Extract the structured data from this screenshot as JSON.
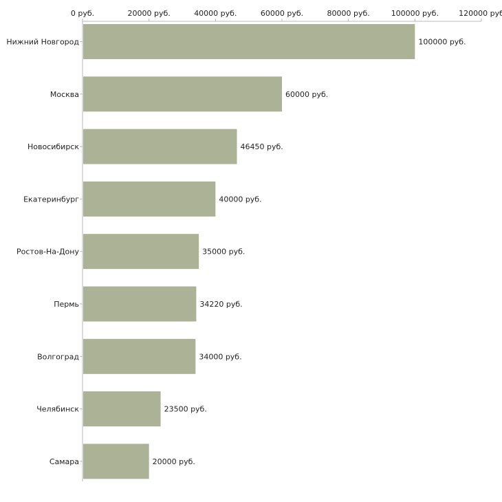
{
  "chart_data": {
    "type": "bar",
    "orientation": "horizontal",
    "title": "",
    "xlabel": "",
    "ylabel": "",
    "unit_suffix": " руб.",
    "xlim": [
      0,
      120000
    ],
    "x_ticks": [
      0,
      20000,
      40000,
      60000,
      80000,
      100000,
      120000
    ],
    "x_tick_labels": [
      "0 руб.",
      "20000 руб.",
      "40000 руб.",
      "60000 руб.",
      "80000 руб.",
      "100000 руб.",
      "120000 руб"
    ],
    "categories": [
      "Нижний Новгород",
      "Москва",
      "Новосибирск",
      "Екатеринбург",
      "Ростов-На-Дону",
      "Пермь",
      "Волгоград",
      "Челябинск",
      "Самара"
    ],
    "values": [
      100000,
      60000,
      46450,
      40000,
      35000,
      34220,
      34000,
      23500,
      20000
    ],
    "value_labels": [
      "100000 руб.",
      "60000 руб.",
      "46450 руб.",
      "40000 руб.",
      "35000 руб.",
      "34220 руб.",
      "34000 руб.",
      "23500 руб.",
      "20000 руб."
    ],
    "bar_color": "#abb296",
    "grid": false,
    "legend": "none"
  }
}
